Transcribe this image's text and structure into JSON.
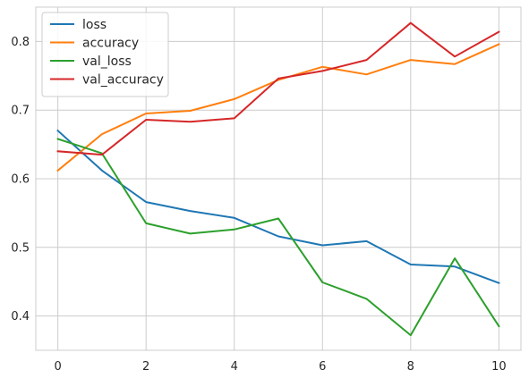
{
  "chart_data": {
    "type": "line",
    "title": "",
    "xlabel": "",
    "ylabel": "",
    "xlim": [
      -0.5,
      10.5
    ],
    "ylim": [
      0.35,
      0.85
    ],
    "x": [
      0,
      1,
      2,
      3,
      4,
      5,
      6,
      7,
      8,
      9,
      10
    ],
    "xticks": [
      0,
      2,
      4,
      6,
      8,
      10
    ],
    "yticks": [
      0.4,
      0.5,
      0.6,
      0.7,
      0.8
    ],
    "grid": true,
    "legend_position": "top-left",
    "series": [
      {
        "name": "loss",
        "color": "#1f77b4",
        "values": [
          0.67,
          0.612,
          0.566,
          0.553,
          0.543,
          0.516,
          0.503,
          0.509,
          0.475,
          0.472,
          0.448
        ]
      },
      {
        "name": "accuracy",
        "color": "#ff7f0e",
        "values": [
          0.612,
          0.665,
          0.695,
          0.699,
          0.716,
          0.744,
          0.763,
          0.752,
          0.773,
          0.767,
          0.796
        ]
      },
      {
        "name": "val_loss",
        "color": "#2ca02c",
        "values": [
          0.658,
          0.637,
          0.535,
          0.52,
          0.526,
          0.542,
          0.449,
          0.425,
          0.372,
          0.484,
          0.385
        ]
      },
      {
        "name": "val_accuracy",
        "color": "#d62728",
        "values": [
          0.64,
          0.635,
          0.686,
          0.683,
          0.688,
          0.746,
          0.757,
          0.773,
          0.827,
          0.778,
          0.814
        ]
      }
    ]
  }
}
